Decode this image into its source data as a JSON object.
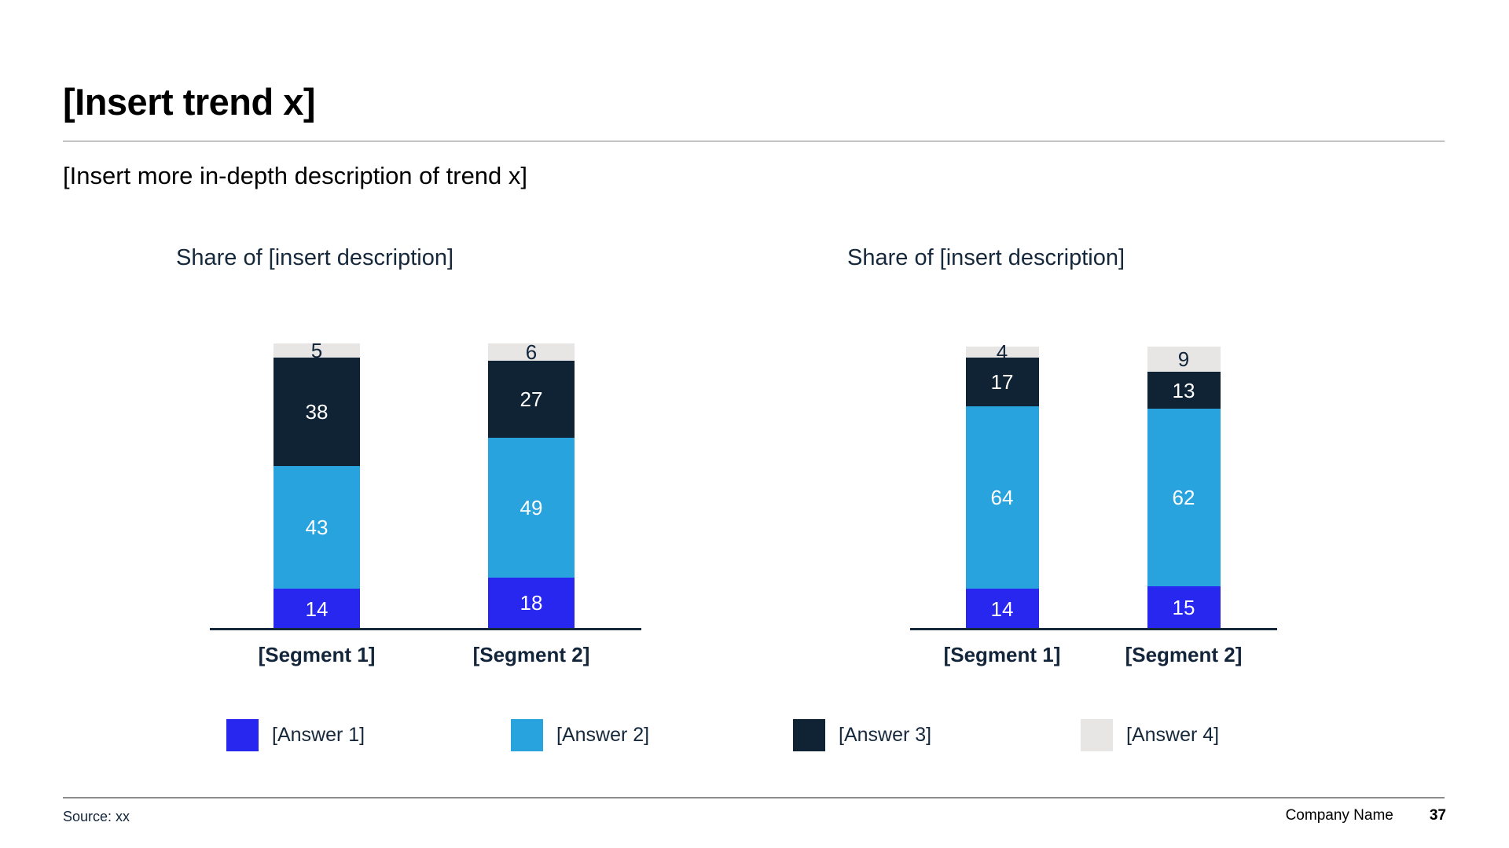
{
  "page": {
    "title": "[Insert trend x]",
    "subtitle": "[Insert more in-depth description of trend x]"
  },
  "colors": {
    "answer1": "#2727f0",
    "answer2": "#29a3de",
    "answer3": "#0f2335",
    "answer4": "#e7e6e4",
    "axis": "#16283c",
    "chart_title_text": "#16283c",
    "dark_label_text": "#13253a",
    "light_label_text": "#ffffff"
  },
  "legend": {
    "items": [
      {
        "label": "[Answer 1]",
        "color": "#2727f0"
      },
      {
        "label": "[Answer 2]",
        "color": "#29a3de"
      },
      {
        "label": "[Answer 3]",
        "color": "#0f2335"
      },
      {
        "label": "[Answer 4]",
        "color": "#e7e6e4"
      }
    ]
  },
  "chart_data": [
    {
      "type": "bar",
      "subtype": "stacked",
      "title": "Share of [insert description]",
      "categories": [
        "[Segment 1]",
        "[Segment 2]"
      ],
      "series": [
        {
          "name": "[Answer 1]",
          "color": "#2727f0",
          "values": [
            14,
            18
          ]
        },
        {
          "name": "[Answer 2]",
          "color": "#29a3de",
          "values": [
            43,
            49
          ]
        },
        {
          "name": "[Answer 3]",
          "color": "#0f2335",
          "values": [
            38,
            27
          ]
        },
        {
          "name": "[Answer 4]",
          "color": "#e7e6e4",
          "values": [
            5,
            6
          ]
        }
      ],
      "ylim": [
        0,
        100
      ],
      "grid": false,
      "legend_position": "bottom"
    },
    {
      "type": "bar",
      "subtype": "stacked",
      "title": "Share of [insert description]",
      "categories": [
        "[Segment 1]",
        "[Segment 2]"
      ],
      "series": [
        {
          "name": "[Answer 1]",
          "color": "#2727f0",
          "values": [
            14,
            15
          ]
        },
        {
          "name": "[Answer 2]",
          "color": "#29a3de",
          "values": [
            64,
            62
          ]
        },
        {
          "name": "[Answer 3]",
          "color": "#0f2335",
          "values": [
            17,
            13
          ]
        },
        {
          "name": "[Answer 4]",
          "color": "#e7e6e4",
          "values": [
            4,
            9
          ]
        }
      ],
      "ylim": [
        0,
        100
      ],
      "grid": false,
      "legend_position": "bottom"
    }
  ],
  "footer": {
    "source": "Source: xx",
    "company": "Company Name",
    "page_number": "37"
  }
}
